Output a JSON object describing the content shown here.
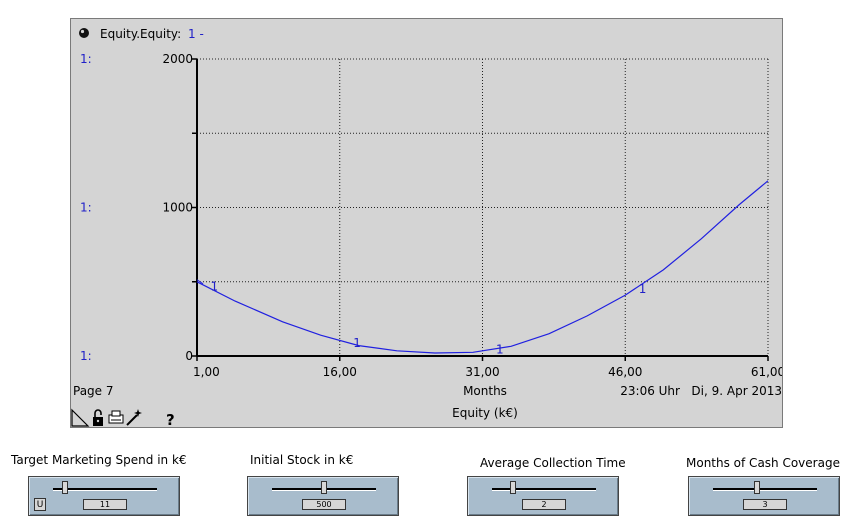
{
  "chart_header": {
    "title_prefix": "Equity.Equity:",
    "series_marker": "1 -"
  },
  "chart_data": {
    "type": "line",
    "title": "Equity (k€)",
    "xlabel": "Months",
    "ylabel": "",
    "xlim": [
      1,
      61
    ],
    "ylim": [
      0,
      2000
    ],
    "x_ticks": [
      "1,00",
      "16,00",
      "31,00",
      "46,00",
      "61,00"
    ],
    "y_ticks": [
      "0",
      "1000",
      "2000"
    ],
    "scale_labels": [
      "1:",
      "1:",
      "1:"
    ],
    "grid": true,
    "series": [
      {
        "marker_label": "1",
        "color": "#2020e0",
        "x": [
          1,
          5,
          10,
          14,
          18,
          22,
          26,
          30,
          34,
          38,
          42,
          46,
          50,
          54,
          58,
          61
        ],
        "y": [
          500,
          370,
          230,
          140,
          70,
          35,
          20,
          25,
          65,
          150,
          270,
          410,
          580,
          790,
          1020,
          1180
        ]
      }
    ],
    "marker_positions_x": [
      2,
      17,
      32,
      47
    ]
  },
  "footer": {
    "page_label": "Page 7",
    "timestamp": "23:06 Uhr   Di, 9. Apr 2013",
    "help_symbol": "?"
  },
  "sliders": [
    {
      "label": "Target Marketing Spend in k€",
      "value": "11",
      "fraction": 0.12,
      "has_u_button": true,
      "u_label": "U"
    },
    {
      "label": "Initial Stock in k€",
      "value": "500",
      "fraction": 0.5,
      "has_u_button": false
    },
    {
      "label": "Average Collection Time",
      "value": "2",
      "fraction": 0.2,
      "has_u_button": false
    },
    {
      "label": "Months of Cash Coverage",
      "value": "3",
      "fraction": 0.42,
      "has_u_button": false
    }
  ],
  "colors": {
    "panel_bg": "#d4d4d4",
    "series_blue": "#2020e0",
    "slider_bg": "#a8bccc"
  }
}
